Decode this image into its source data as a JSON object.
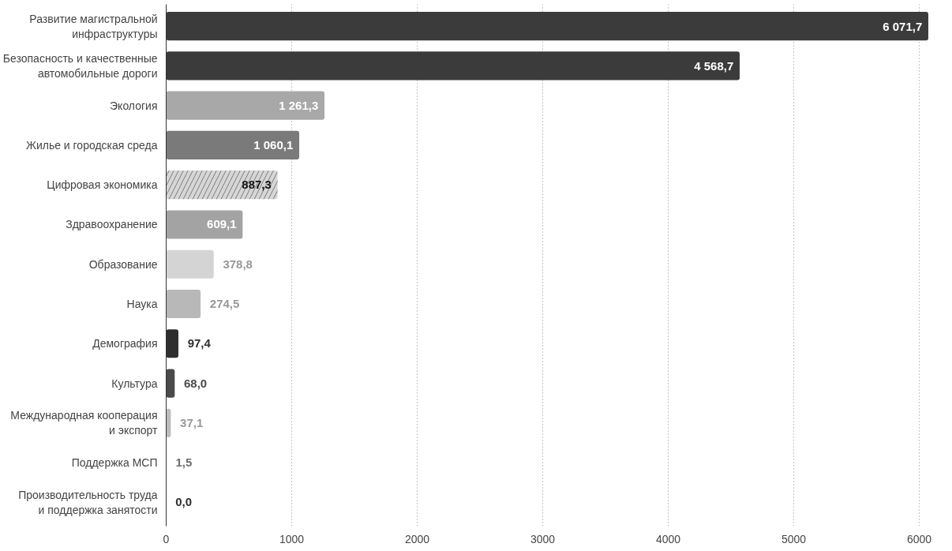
{
  "chart_data": {
    "type": "bar",
    "orientation": "horizontal",
    "categories": [
      "Развитие магистральной\nинфраструктуры",
      "Безопасность и качественные\nавтомобильные дороги",
      "Экология",
      "Жилье и городская среда",
      "Цифровая экономика",
      "Здравоохранение",
      "Образование",
      "Наука",
      "Демография",
      "Культура",
      "Международная кооперация\nи экспорт",
      "Поддержка МСП",
      "Производительность труда\nи поддержка занятости"
    ],
    "values": [
      6071.7,
      4568.7,
      1261.3,
      1060.1,
      887.3,
      609.1,
      378.8,
      274.5,
      97.4,
      68.0,
      37.1,
      1.5,
      0.0
    ],
    "colors": [
      "#3b3b3b",
      "#3b3b3b",
      "#a8a8a8",
      "#7a7a7a",
      "#d6d6d6",
      "#a3a3a3",
      "#d4d4d4",
      "#b8b8b8",
      "#2e2e2e",
      "#4a4a4a",
      "#bdbdbd",
      "#6e6e6e",
      "#2e2e2e"
    ],
    "value_labels": [
      "6 071,7",
      "4 568,7",
      "1 261,3",
      "1 060,1",
      "887,3",
      "609,1",
      "378,8",
      "274,5",
      "97,4",
      "68,0",
      "37,1",
      "1,5",
      "0,0"
    ],
    "xlim": [
      0,
      6100
    ],
    "xticks": [
      0,
      1000,
      2000,
      3000,
      4000,
      5000,
      6000
    ],
    "grid": "x"
  }
}
